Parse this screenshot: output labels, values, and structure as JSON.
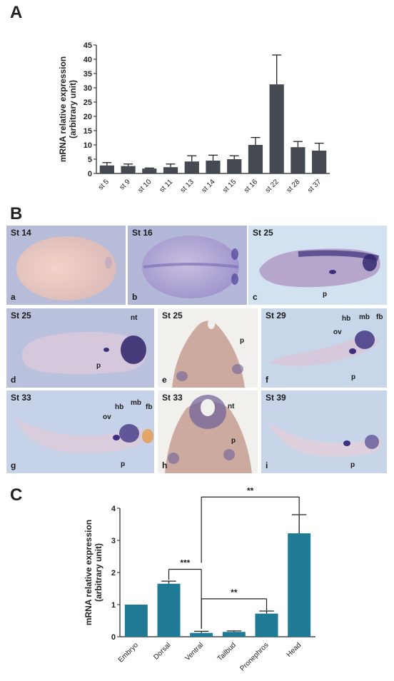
{
  "panels": {
    "a": {
      "letter": "A"
    },
    "b": {
      "letter": "B"
    },
    "c": {
      "letter": "C"
    }
  },
  "chart_data": [
    {
      "type": "bar",
      "ylabel": "mRNA relative expression\n(arbitrary unit)",
      "ylim": [
        0,
        45
      ],
      "yticks": [
        0,
        5,
        10,
        15,
        20,
        25,
        30,
        35,
        40,
        45
      ],
      "categories": [
        "st 5",
        "st 9",
        "st 10",
        "st 11",
        "st 13",
        "st 14",
        "st 15",
        "st 16",
        "st 22",
        "st 28",
        "st 37"
      ],
      "values": [
        2.8,
        2.6,
        1.7,
        2.2,
        4.2,
        4.5,
        5.0,
        10.0,
        31.2,
        9.2,
        8.0
      ],
      "errors": [
        1.0,
        0.7,
        0.2,
        1.1,
        2.0,
        1.9,
        1.2,
        2.6,
        10.3,
        2.0,
        2.6
      ],
      "bar_color": "#454a52",
      "grid": false
    },
    {
      "type": "bar",
      "ylabel": "mRNA relative expression\n(arbitrary unit)",
      "ylim": [
        0,
        4
      ],
      "yticks": [
        0,
        1,
        2,
        3,
        4
      ],
      "categories": [
        "Embryo",
        "Dorsal",
        "Ventral",
        "Tailbud",
        "Pronephros",
        "Head"
      ],
      "values": [
        1.0,
        1.65,
        0.12,
        0.15,
        0.72,
        3.22
      ],
      "errors": [
        0.0,
        0.08,
        0.05,
        0.03,
        0.08,
        0.58
      ],
      "bar_color": "#1f7a96",
      "grid": false,
      "significance": [
        {
          "label": "***",
          "from": "Dorsal",
          "to": "Ventral"
        },
        {
          "label": "**",
          "from": "Ventral",
          "to": "Pronephros"
        },
        {
          "label": "**",
          "from": "Ventral",
          "to": "Head"
        }
      ]
    }
  ],
  "images": [
    {
      "stage": "St 14",
      "letter": "a",
      "labels": []
    },
    {
      "stage": "St 16",
      "letter": "b",
      "labels": []
    },
    {
      "stage": "St 25",
      "letter": "c",
      "labels": [
        "p"
      ]
    },
    {
      "stage": "St 25",
      "letter": "d",
      "labels": [
        "nt",
        "p"
      ]
    },
    {
      "stage": "St 25",
      "letter": "e",
      "labels": [
        "p"
      ]
    },
    {
      "stage": "St 29",
      "letter": "f",
      "labels": [
        "hb",
        "mb",
        "fb",
        "ov",
        "p"
      ]
    },
    {
      "stage": "St 33",
      "letter": "g",
      "labels": [
        "hb",
        "mb",
        "fb",
        "ov",
        "p"
      ]
    },
    {
      "stage": "St 33",
      "letter": "h",
      "labels": [
        "nt",
        "p"
      ]
    },
    {
      "stage": "St 39",
      "letter": "i",
      "labels": [
        "p"
      ]
    }
  ]
}
